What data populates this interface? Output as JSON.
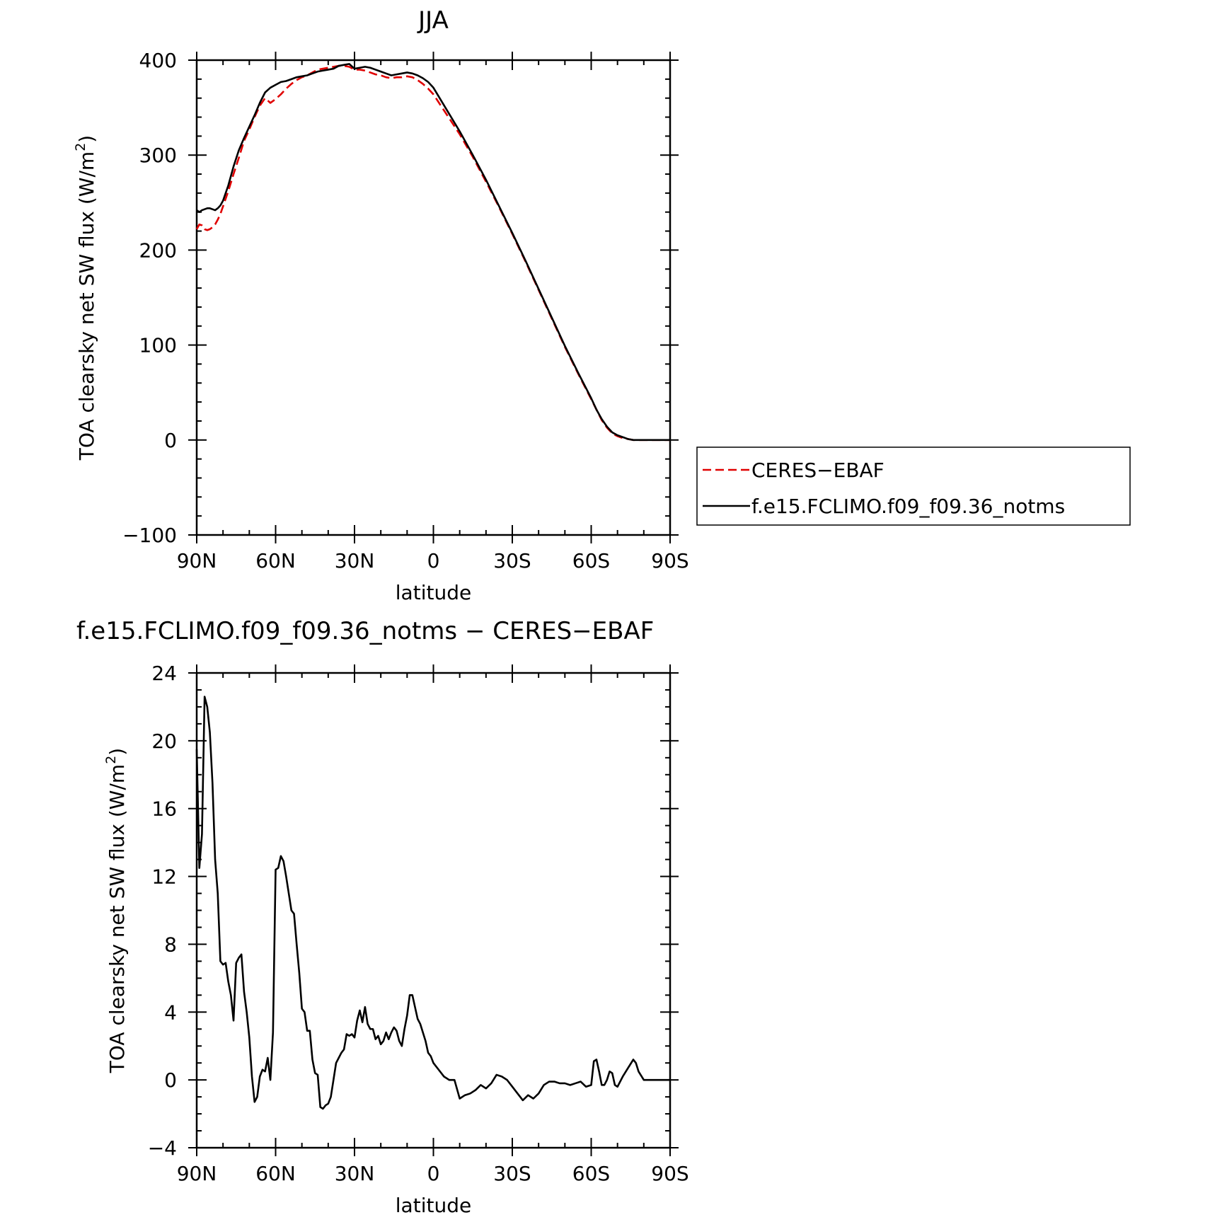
{
  "chart_data": [
    {
      "type": "line",
      "title": "JJA",
      "xlabel": "latitude",
      "ylabel": "TOA clearsky net SW flux (W/m²)",
      "ylabel_main": "TOA clearsky net SW flux (W/m",
      "ylabel_sup": "2",
      "ylabel_close": ")",
      "xlim": [
        90,
        -90
      ],
      "ylim": [
        -100,
        400
      ],
      "xticks": [
        90,
        60,
        30,
        0,
        -30,
        -60,
        -90
      ],
      "xtick_labels": [
        "90N",
        "60N",
        "30N",
        "0",
        "30S",
        "60S",
        "90S"
      ],
      "yticks": [
        -100,
        0,
        100,
        200,
        300,
        400
      ],
      "ytick_labels": [
        "−100",
        "0",
        "100",
        "200",
        "300",
        "400"
      ],
      "legend": {
        "position": "right",
        "entries": [
          "CERES−EBAF",
          "f.e15.FCLIMO.f09_f09.36_notms"
        ]
      },
      "series": [
        {
          "name": "CERES−EBAF",
          "color": "#e00000",
          "dash": "dashed",
          "x": [
            90,
            89,
            88,
            87,
            86,
            85,
            84,
            83,
            82,
            81,
            80,
            78,
            76,
            74,
            72,
            70,
            68,
            66,
            64,
            62,
            60,
            58,
            56,
            54,
            52,
            50,
            48,
            46,
            44,
            42,
            40,
            38,
            36,
            34,
            32,
            30,
            28,
            26,
            24,
            22,
            20,
            18,
            16,
            14,
            12,
            10,
            8,
            6,
            4,
            2,
            0,
            -5,
            -10,
            -15,
            -20,
            -25,
            -30,
            -35,
            -40,
            -45,
            -50,
            -55,
            -60,
            -62,
            -64,
            -66,
            -68,
            -70,
            -72,
            -74,
            -76,
            -78,
            -80,
            -82,
            -84,
            -86,
            -88,
            -90
          ],
          "y": [
            222,
            227,
            226,
            222,
            221,
            222,
            224,
            227,
            232,
            238,
            246,
            262,
            280,
            297,
            315,
            327,
            340,
            352,
            360,
            355,
            359,
            364,
            370,
            375,
            379,
            382,
            384,
            387,
            390,
            391,
            392,
            393,
            394,
            394,
            393,
            390,
            390,
            389,
            387,
            385,
            384,
            382,
            381,
            382,
            382,
            383,
            382,
            379,
            375,
            370,
            364,
            343,
            322,
            298,
            272,
            245,
            217,
            188,
            158,
            128,
            98,
            70,
            43,
            32,
            21,
            13,
            7,
            4,
            2,
            1,
            0,
            0,
            0,
            0,
            0,
            0,
            0,
            0
          ]
        },
        {
          "name": "f.e15.FCLIMO.f09_f09.36_notms",
          "color": "#000000",
          "dash": "solid",
          "x": [
            90,
            89,
            88,
            87,
            86,
            85,
            84,
            83,
            82,
            81,
            80,
            78,
            76,
            74,
            72,
            70,
            68,
            66,
            64,
            62,
            60,
            58,
            56,
            54,
            52,
            50,
            48,
            46,
            44,
            42,
            40,
            38,
            36,
            34,
            32,
            30,
            28,
            26,
            24,
            22,
            20,
            18,
            16,
            14,
            12,
            10,
            8,
            6,
            4,
            2,
            0,
            -5,
            -10,
            -15,
            -20,
            -25,
            -30,
            -35,
            -40,
            -45,
            -50,
            -55,
            -60,
            -62,
            -64,
            -66,
            -68,
            -70,
            -72,
            -74,
            -76,
            -78,
            -80,
            -82,
            -84,
            -86,
            -88,
            -90
          ],
          "y": [
            242,
            240,
            242,
            243,
            244,
            244,
            243,
            242,
            244,
            247,
            252,
            268,
            288,
            305,
            318,
            330,
            342,
            355,
            366,
            371,
            374,
            377,
            378,
            380,
            382,
            383,
            384,
            386,
            388,
            389,
            390,
            391,
            394,
            395,
            396,
            391,
            392,
            393,
            392,
            390,
            388,
            386,
            384,
            385,
            386,
            387,
            386,
            384,
            381,
            377,
            371,
            348,
            325,
            300,
            274,
            246,
            218,
            189,
            159,
            129,
            99,
            71,
            44,
            32,
            22,
            14,
            8,
            5,
            3,
            1,
            0,
            0,
            0,
            0,
            0,
            0,
            0,
            0
          ]
        }
      ]
    },
    {
      "type": "line",
      "title": "f.e15.FCLIMO.f09_f09.36_notms − CERES−EBAF",
      "xlabel": "latitude",
      "ylabel": "TOA clearsky net SW flux (W/m²)",
      "ylabel_main": "TOA clearsky net SW flux (W/m",
      "ylabel_sup": "2",
      "ylabel_close": ")",
      "xlim": [
        90,
        -90
      ],
      "ylim": [
        -4,
        24
      ],
      "xticks": [
        90,
        60,
        30,
        0,
        -30,
        -60,
        -90
      ],
      "xtick_labels": [
        "90N",
        "60N",
        "30N",
        "0",
        "30S",
        "60S",
        "90S"
      ],
      "yticks": [
        -4,
        0,
        4,
        8,
        12,
        16,
        20,
        24
      ],
      "ytick_labels": [
        "−4",
        "0",
        "4",
        "8",
        "12",
        "16",
        "20",
        "24"
      ],
      "series": [
        {
          "name": "",
          "color": "#000000",
          "dash": "solid",
          "x": [
            90,
            89,
            88,
            87,
            86,
            85,
            84,
            83,
            82,
            81,
            80,
            79,
            78,
            77,
            76,
            75,
            74,
            73,
            72,
            71,
            70,
            69,
            68,
            67,
            66,
            65,
            64,
            63,
            62,
            61,
            60,
            59,
            58,
            57,
            56,
            55,
            54,
            53,
            52,
            51,
            50,
            49,
            48,
            47,
            46,
            45,
            44,
            43,
            42,
            41,
            40,
            39,
            38,
            37,
            36,
            35,
            34,
            33,
            32,
            31,
            30,
            29,
            28,
            27,
            26,
            25,
            24,
            23,
            22,
            21,
            20,
            19,
            18,
            17,
            16,
            15,
            14,
            13,
            12,
            11,
            10,
            9,
            8,
            7,
            6,
            5,
            4,
            3,
            2,
            1,
            0,
            -2,
            -4,
            -6,
            -8,
            -10,
            -12,
            -14,
            -16,
            -18,
            -20,
            -22,
            -24,
            -26,
            -28,
            -30,
            -32,
            -34,
            -36,
            -38,
            -40,
            -42,
            -44,
            -46,
            -48,
            -50,
            -52,
            -54,
            -56,
            -58,
            -60,
            -61,
            -62,
            -63,
            -64,
            -65,
            -66,
            -67,
            -68,
            -69,
            -70,
            -72,
            -74,
            -76,
            -77,
            -78,
            -80,
            -82,
            -84,
            -86,
            -88,
            -90
          ],
          "y": [
            19.5,
            12.5,
            14.5,
            22.6,
            22.0,
            20.5,
            17.5,
            13.0,
            11.0,
            7.0,
            6.8,
            6.9,
            5.8,
            5.0,
            3.5,
            6.9,
            7.2,
            7.4,
            5.2,
            4.0,
            2.5,
            0.2,
            -1.3,
            -1.0,
            0.2,
            0.6,
            0.5,
            1.3,
            0.0,
            2.8,
            12.4,
            12.5,
            13.2,
            12.9,
            12.0,
            11.0,
            10.0,
            9.8,
            8.0,
            6.3,
            4.2,
            4.0,
            2.9,
            2.9,
            1.2,
            0.4,
            0.3,
            -1.6,
            -1.7,
            -1.5,
            -1.4,
            -1.0,
            0.0,
            1.0,
            1.3,
            1.6,
            1.8,
            2.7,
            2.6,
            2.7,
            2.5,
            3.5,
            4.1,
            3.4,
            4.3,
            3.3,
            3.0,
            3.0,
            2.4,
            2.6,
            2.1,
            2.3,
            2.8,
            2.4,
            2.8,
            3.1,
            2.9,
            2.3,
            2.0,
            3.0,
            3.8,
            5.0,
            5.0,
            4.3,
            3.6,
            3.3,
            2.8,
            2.3,
            1.6,
            1.4,
            1.0,
            0.6,
            0.2,
            0.0,
            0.0,
            -1.1,
            -0.9,
            -0.8,
            -0.6,
            -0.3,
            -0.5,
            -0.2,
            0.3,
            0.2,
            0.0,
            -0.4,
            -0.8,
            -1.2,
            -0.9,
            -1.1,
            -0.8,
            -0.3,
            -0.1,
            -0.1,
            -0.2,
            -0.2,
            -0.3,
            -0.2,
            -0.1,
            -0.4,
            -0.3,
            1.1,
            1.2,
            0.5,
            -0.3,
            -0.3,
            0.0,
            0.5,
            0.4,
            -0.3,
            -0.4,
            0.2,
            0.7,
            1.2,
            1.0,
            0.5,
            0.0,
            0.0,
            0.0,
            0.0,
            0.0,
            0.0
          ]
        }
      ]
    }
  ]
}
